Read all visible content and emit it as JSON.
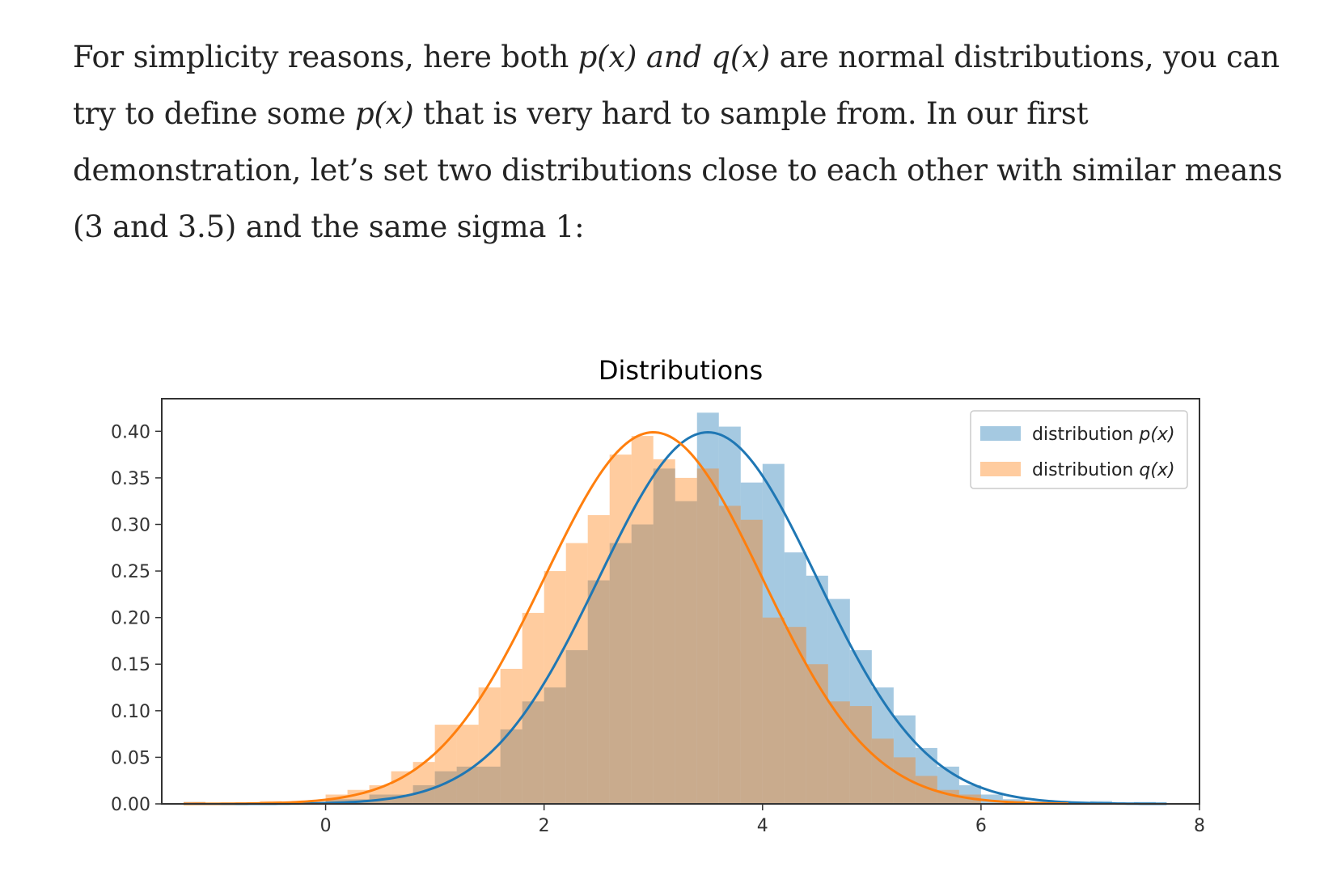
{
  "article": {
    "segments": [
      {
        "text": "For simplicity reasons, here both ",
        "italic": false
      },
      {
        "text": "p(x) and q(x)",
        "italic": true
      },
      {
        "text": " are normal distributions, you can try to define some ",
        "italic": false
      },
      {
        "text": "p(x)",
        "italic": true
      },
      {
        "text": " that is very hard to sample from. In our first demonstration, let’s set two distributions close to each other with similar means (3 and 3.5) and the same sigma 1:",
        "italic": false
      }
    ]
  },
  "chart_data": {
    "type": "bar",
    "title": "Distributions",
    "xlabel": "",
    "ylabel": "",
    "xlim": [
      -1.5,
      8
    ],
    "ylim": [
      0,
      0.435
    ],
    "xticks": [
      0,
      2,
      4,
      6,
      8
    ],
    "yticks": [
      0.0,
      0.05,
      0.1,
      0.15,
      0.2,
      0.25,
      0.3,
      0.35,
      0.4
    ],
    "ytick_labels": [
      "0.00",
      "0.05",
      "0.10",
      "0.15",
      "0.20",
      "0.25",
      "0.30",
      "0.35",
      "0.40"
    ],
    "grid": false,
    "legend_position": "top-right",
    "series": [
      {
        "name": "distribution p(x)",
        "legend_math": "p(x)",
        "color": "#1f77b4",
        "hist_bins": [
          {
            "x0": -1.3,
            "x1": -1.1,
            "y": 0.002
          },
          {
            "x0": 0.0,
            "x1": 0.2,
            "y": 0.005
          },
          {
            "x0": 0.2,
            "x1": 0.4,
            "y": 0.005
          },
          {
            "x0": 0.4,
            "x1": 0.6,
            "y": 0.01
          },
          {
            "x0": 0.6,
            "x1": 0.8,
            "y": 0.01
          },
          {
            "x0": 0.8,
            "x1": 1.0,
            "y": 0.02
          },
          {
            "x0": 1.0,
            "x1": 1.2,
            "y": 0.035
          },
          {
            "x0": 1.2,
            "x1": 1.4,
            "y": 0.04
          },
          {
            "x0": 1.4,
            "x1": 1.6,
            "y": 0.04
          },
          {
            "x0": 1.6,
            "x1": 1.8,
            "y": 0.08
          },
          {
            "x0": 1.8,
            "x1": 2.0,
            "y": 0.11
          },
          {
            "x0": 2.0,
            "x1": 2.2,
            "y": 0.125
          },
          {
            "x0": 2.2,
            "x1": 2.4,
            "y": 0.165
          },
          {
            "x0": 2.4,
            "x1": 2.6,
            "y": 0.24
          },
          {
            "x0": 2.6,
            "x1": 2.8,
            "y": 0.28
          },
          {
            "x0": 2.8,
            "x1": 3.0,
            "y": 0.3
          },
          {
            "x0": 3.0,
            "x1": 3.2,
            "y": 0.36
          },
          {
            "x0": 3.2,
            "x1": 3.4,
            "y": 0.325
          },
          {
            "x0": 3.4,
            "x1": 3.6,
            "y": 0.42
          },
          {
            "x0": 3.6,
            "x1": 3.8,
            "y": 0.405
          },
          {
            "x0": 3.8,
            "x1": 4.0,
            "y": 0.345
          },
          {
            "x0": 4.0,
            "x1": 4.2,
            "y": 0.365
          },
          {
            "x0": 4.2,
            "x1": 4.4,
            "y": 0.27
          },
          {
            "x0": 4.4,
            "x1": 4.6,
            "y": 0.245
          },
          {
            "x0": 4.6,
            "x1": 4.8,
            "y": 0.22
          },
          {
            "x0": 4.8,
            "x1": 5.0,
            "y": 0.165
          },
          {
            "x0": 5.0,
            "x1": 5.2,
            "y": 0.125
          },
          {
            "x0": 5.2,
            "x1": 5.4,
            "y": 0.095
          },
          {
            "x0": 5.4,
            "x1": 5.6,
            "y": 0.06
          },
          {
            "x0": 5.6,
            "x1": 5.8,
            "y": 0.04
          },
          {
            "x0": 5.8,
            "x1": 6.0,
            "y": 0.02
          },
          {
            "x0": 6.0,
            "x1": 6.2,
            "y": 0.01
          },
          {
            "x0": 6.2,
            "x1": 6.4,
            "y": 0.005
          },
          {
            "x0": 7.0,
            "x1": 7.2,
            "y": 0.003
          },
          {
            "x0": 7.4,
            "x1": 7.6,
            "y": 0.002
          }
        ],
        "kde_mean": 3.5,
        "kde_sigma": 1.0,
        "kde_range": [
          -1.3,
          7.7
        ]
      },
      {
        "name": "distribution q(x)",
        "legend_math": "q(x)",
        "color": "#ff7f0e",
        "hist_bins": [
          {
            "x0": -1.3,
            "x1": -1.1,
            "y": 0.002
          },
          {
            "x0": -0.6,
            "x1": -0.4,
            "y": 0.003
          },
          {
            "x0": 0.0,
            "x1": 0.2,
            "y": 0.01
          },
          {
            "x0": 0.2,
            "x1": 0.4,
            "y": 0.015
          },
          {
            "x0": 0.4,
            "x1": 0.6,
            "y": 0.02
          },
          {
            "x0": 0.6,
            "x1": 0.8,
            "y": 0.035
          },
          {
            "x0": 0.8,
            "x1": 1.0,
            "y": 0.045
          },
          {
            "x0": 1.0,
            "x1": 1.2,
            "y": 0.085
          },
          {
            "x0": 1.2,
            "x1": 1.4,
            "y": 0.085
          },
          {
            "x0": 1.4,
            "x1": 1.6,
            "y": 0.125
          },
          {
            "x0": 1.6,
            "x1": 1.8,
            "y": 0.145
          },
          {
            "x0": 1.8,
            "x1": 2.0,
            "y": 0.205
          },
          {
            "x0": 2.0,
            "x1": 2.2,
            "y": 0.25
          },
          {
            "x0": 2.2,
            "x1": 2.4,
            "y": 0.28
          },
          {
            "x0": 2.4,
            "x1": 2.6,
            "y": 0.31
          },
          {
            "x0": 2.6,
            "x1": 2.8,
            "y": 0.375
          },
          {
            "x0": 2.8,
            "x1": 3.0,
            "y": 0.395
          },
          {
            "x0": 3.0,
            "x1": 3.2,
            "y": 0.37
          },
          {
            "x0": 3.2,
            "x1": 3.4,
            "y": 0.35
          },
          {
            "x0": 3.4,
            "x1": 3.6,
            "y": 0.36
          },
          {
            "x0": 3.6,
            "x1": 3.8,
            "y": 0.32
          },
          {
            "x0": 3.8,
            "x1": 4.0,
            "y": 0.305
          },
          {
            "x0": 4.0,
            "x1": 4.2,
            "y": 0.2
          },
          {
            "x0": 4.2,
            "x1": 4.4,
            "y": 0.19
          },
          {
            "x0": 4.4,
            "x1": 4.6,
            "y": 0.15
          },
          {
            "x0": 4.6,
            "x1": 4.8,
            "y": 0.11
          },
          {
            "x0": 4.8,
            "x1": 5.0,
            "y": 0.105
          },
          {
            "x0": 5.0,
            "x1": 5.2,
            "y": 0.07
          },
          {
            "x0": 5.2,
            "x1": 5.4,
            "y": 0.05
          },
          {
            "x0": 5.4,
            "x1": 5.6,
            "y": 0.03
          },
          {
            "x0": 5.6,
            "x1": 5.8,
            "y": 0.015
          },
          {
            "x0": 5.8,
            "x1": 6.0,
            "y": 0.01
          }
        ],
        "kde_mean": 3.0,
        "kde_sigma": 1.0,
        "kde_range": [
          -1.3,
          6.8
        ]
      }
    ]
  }
}
